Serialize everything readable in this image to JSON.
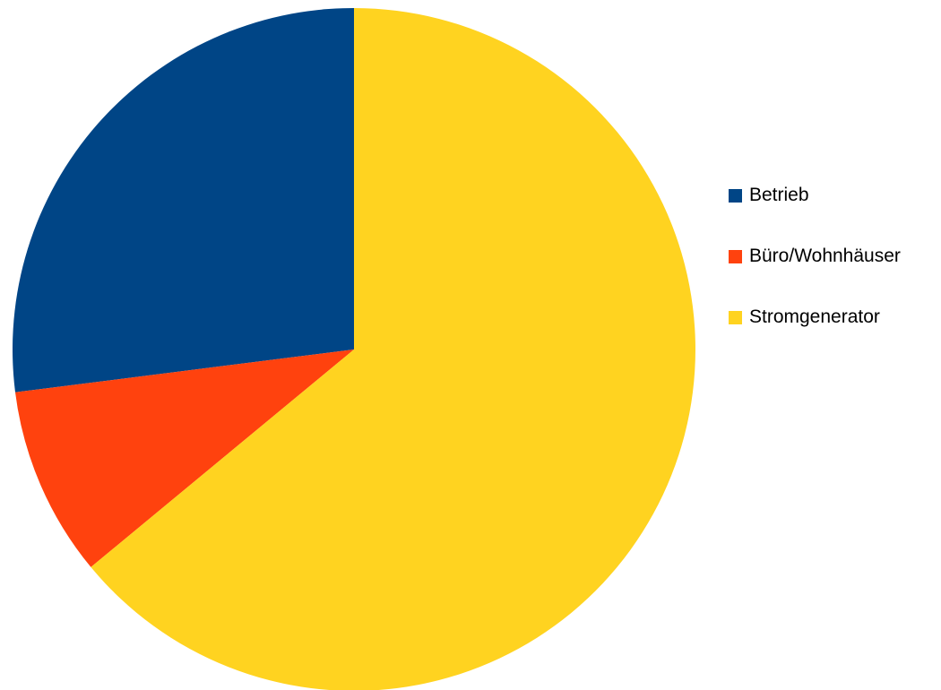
{
  "chart_data": {
    "type": "pie",
    "start_angle_deg": 0,
    "direction": "counterclockwise",
    "slices": [
      {
        "label": "Betrieb",
        "value": 27.0,
        "color": "#004586"
      },
      {
        "label": "Büro/Wohnhäuser",
        "value": 9.0,
        "color": "#ff420e"
      },
      {
        "label": "Stromgenerator",
        "value": 64.0,
        "color": "#ffd320"
      }
    ],
    "legend": {
      "placement": "right",
      "entries": [
        "Betrieb",
        "Büro/Wohnhäuser",
        "Stromgenerator"
      ]
    }
  }
}
